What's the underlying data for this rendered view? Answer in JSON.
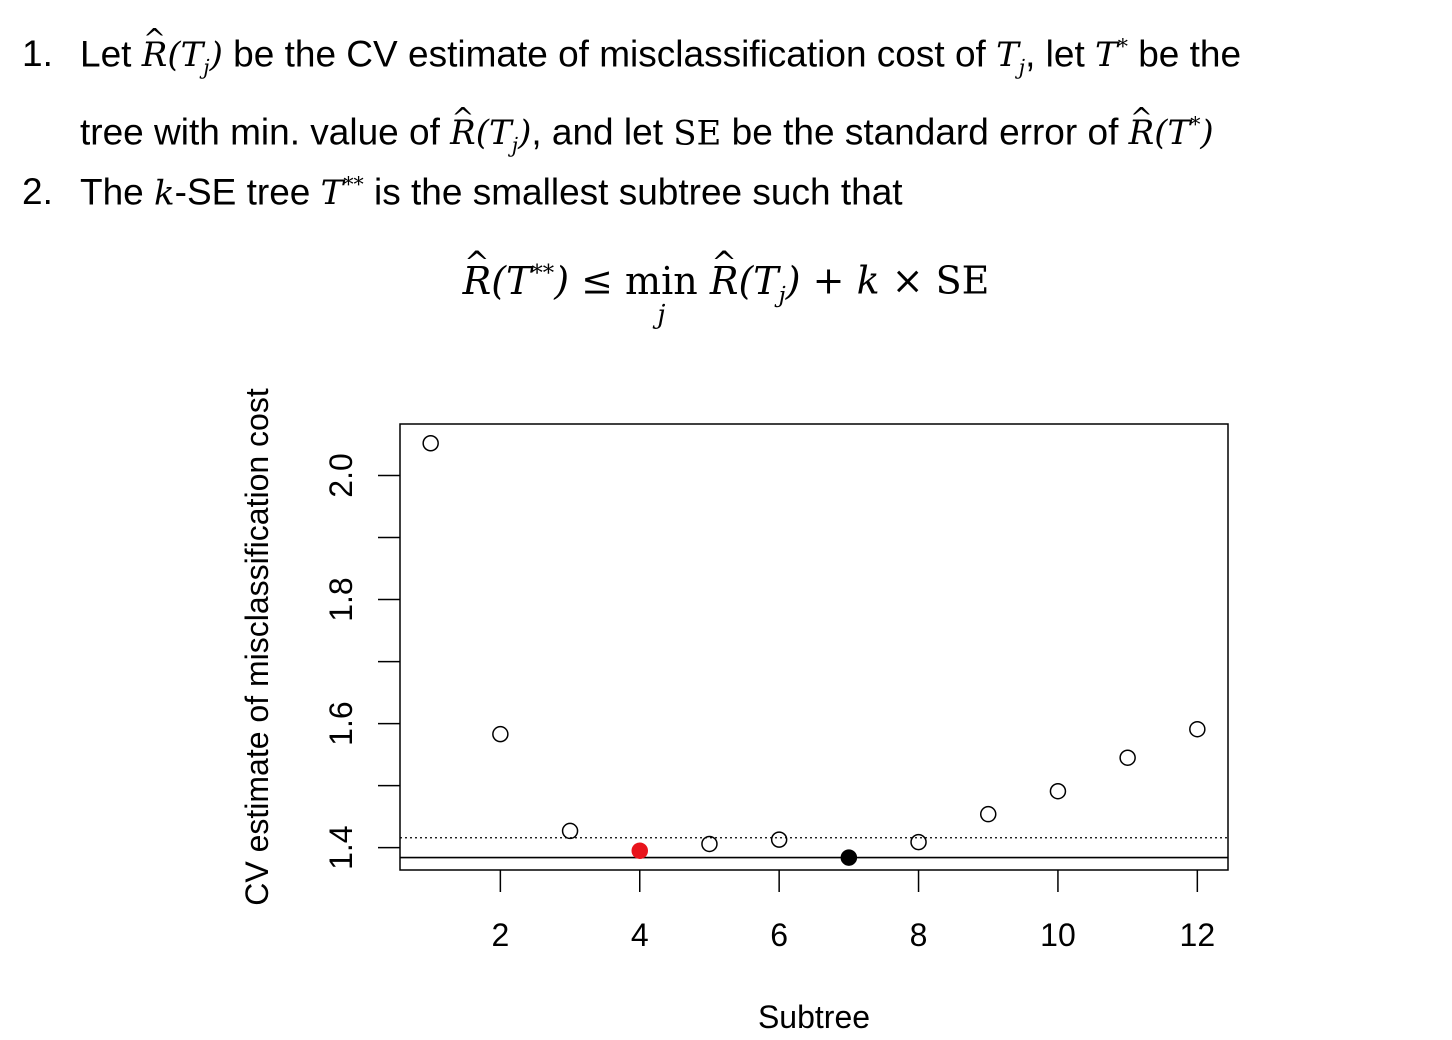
{
  "text": {
    "item1_num": "1.",
    "item1_let": "Let",
    "item1_a": "be the CV estimate of misclassification cost of",
    "item1_b": ", let",
    "item1_c": "be the",
    "item1_line2_a": "tree with min. value of",
    "item1_line2_b": ", and let",
    "item1_line2_se": "SE",
    "item1_line2_c": "be the standard error of",
    "item2_num": "2.",
    "item2_a": "The",
    "item2_k": "k",
    "item2_b": "-SE tree",
    "item2_c": "is the smallest subtree such that",
    "sym_R": "R",
    "sym_T": "T",
    "sym_j": "j",
    "sym_star": "*",
    "sym_2star": "**",
    "formula_le": "≤",
    "formula_min": "min",
    "formula_plus": "+",
    "formula_k": "k",
    "formula_times": "×",
    "formula_se": "SE"
  },
  "chart_data": {
    "type": "scatter",
    "xlabel": "Subtree",
    "ylabel": "CV estimate of misclassification cost",
    "xticks": [
      2,
      4,
      6,
      8,
      10,
      12
    ],
    "yticks": [
      1.4,
      1.6,
      1.8,
      2.0
    ],
    "xlim": [
      0.56,
      12.44
    ],
    "ylim": [
      1.364,
      2.083
    ],
    "points": [
      {
        "x": 1,
        "y": 2.052,
        "style": "open"
      },
      {
        "x": 2,
        "y": 1.583,
        "style": "open"
      },
      {
        "x": 3,
        "y": 1.427,
        "style": "open"
      },
      {
        "x": 4,
        "y": 1.395,
        "style": "filled",
        "color": "#e8141c"
      },
      {
        "x": 5,
        "y": 1.406,
        "style": "open"
      },
      {
        "x": 6,
        "y": 1.413,
        "style": "open"
      },
      {
        "x": 7,
        "y": 1.384,
        "style": "filled",
        "color": "#000000"
      },
      {
        "x": 8,
        "y": 1.409,
        "style": "open"
      },
      {
        "x": 9,
        "y": 1.454,
        "style": "open"
      },
      {
        "x": 10,
        "y": 1.491,
        "style": "open"
      },
      {
        "x": 11,
        "y": 1.545,
        "style": "open"
      },
      {
        "x": 12,
        "y": 1.591,
        "style": "open"
      }
    ],
    "hlines": [
      {
        "y": 1.384,
        "style": "solid"
      },
      {
        "y": 1.416,
        "style": "dotted"
      }
    ],
    "grid": false,
    "legend": "none"
  }
}
